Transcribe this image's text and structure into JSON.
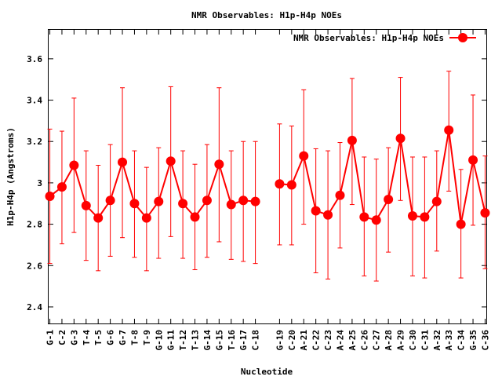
{
  "chart_data": {
    "type": "line",
    "title": "NMR Observables: H1p-H4p NOEs",
    "xlabel": "Nucleotide",
    "ylabel": "H1p-H4p (Angstroms)",
    "ylim": [
      2.32,
      3.74
    ],
    "yticks": [
      2.4,
      2.6,
      2.8,
      3,
      3.2,
      3.4,
      3.6
    ],
    "ytick_labels": [
      "2.4",
      "2.6",
      "2.8",
      "3",
      "3.2",
      "3.4",
      "3.6"
    ],
    "xlim": [
      0.9,
      37.1
    ],
    "legend": {
      "label": "NMR Observables: H1p-H4p NOEs",
      "position": "top-right"
    },
    "series_color": "#ff0000",
    "series": [
      {
        "name": "NMR Observables: H1p-H4p NOEs",
        "points": [
          {
            "x": 1,
            "label": "G-1",
            "y": 2.935,
            "ylow": 2.61,
            "yhigh": 3.26
          },
          {
            "x": 2,
            "label": "C-2",
            "y": 2.98,
            "ylow": 2.705,
            "yhigh": 3.25
          },
          {
            "x": 3,
            "label": "G-3",
            "y": 3.085,
            "ylow": 2.76,
            "yhigh": 3.41
          },
          {
            "x": 4,
            "label": "T-4",
            "y": 2.89,
            "ylow": 2.625,
            "yhigh": 3.155
          },
          {
            "x": 5,
            "label": "T-5",
            "y": 2.83,
            "ylow": 2.575,
            "yhigh": 3.085
          },
          {
            "x": 6,
            "label": "G-6",
            "y": 2.915,
            "ylow": 2.645,
            "yhigh": 3.185
          },
          {
            "x": 7,
            "label": "G-7",
            "y": 3.1,
            "ylow": 2.735,
            "yhigh": 3.46
          },
          {
            "x": 8,
            "label": "T-8",
            "y": 2.9,
            "ylow": 2.64,
            "yhigh": 3.155
          },
          {
            "x": 9,
            "label": "T-9",
            "y": 2.83,
            "ylow": 2.575,
            "yhigh": 3.075
          },
          {
            "x": 10,
            "label": "G-10",
            "y": 2.91,
            "ylow": 2.635,
            "yhigh": 3.17
          },
          {
            "x": 11,
            "label": "G-11",
            "y": 3.105,
            "ylow": 2.74,
            "yhigh": 3.465
          },
          {
            "x": 12,
            "label": "T-12",
            "y": 2.9,
            "ylow": 2.635,
            "yhigh": 3.155
          },
          {
            "x": 13,
            "label": "T-13",
            "y": 2.835,
            "ylow": 2.58,
            "yhigh": 3.09
          },
          {
            "x": 14,
            "label": "G-14",
            "y": 2.915,
            "ylow": 2.64,
            "yhigh": 3.185
          },
          {
            "x": 15,
            "label": "G-15",
            "y": 3.09,
            "ylow": 2.715,
            "yhigh": 3.46
          },
          {
            "x": 16,
            "label": "T-16",
            "y": 2.895,
            "ylow": 2.63,
            "yhigh": 3.155
          },
          {
            "x": 17,
            "label": "G-17",
            "y": 2.915,
            "ylow": 2.62,
            "yhigh": 3.2
          },
          {
            "x": 18,
            "label": "C-18",
            "y": 2.91,
            "ylow": 2.61,
            "yhigh": 3.2
          },
          {
            "x": 20,
            "label": "G-19",
            "y": 2.995,
            "ylow": 2.7,
            "yhigh": 3.285,
            "gap_before": true
          },
          {
            "x": 21,
            "label": "C-20",
            "y": 2.99,
            "ylow": 2.7,
            "yhigh": 3.275
          },
          {
            "x": 22,
            "label": "A-21",
            "y": 3.13,
            "ylow": 2.8,
            "yhigh": 3.45
          },
          {
            "x": 23,
            "label": "C-22",
            "y": 2.865,
            "ylow": 2.565,
            "yhigh": 3.165
          },
          {
            "x": 24,
            "label": "C-23",
            "y": 2.845,
            "ylow": 2.535,
            "yhigh": 3.155
          },
          {
            "x": 25,
            "label": "A-24",
            "y": 2.94,
            "ylow": 2.685,
            "yhigh": 3.195
          },
          {
            "x": 26,
            "label": "A-25",
            "y": 3.205,
            "ylow": 2.895,
            "yhigh": 3.505
          },
          {
            "x": 27,
            "label": "C-26",
            "y": 2.835,
            "ylow": 2.55,
            "yhigh": 3.125
          },
          {
            "x": 28,
            "label": "C-27",
            "y": 2.82,
            "ylow": 2.525,
            "yhigh": 3.115
          },
          {
            "x": 29,
            "label": "A-28",
            "y": 2.92,
            "ylow": 2.665,
            "yhigh": 3.17
          },
          {
            "x": 30,
            "label": "A-29",
            "y": 3.215,
            "ylow": 2.915,
            "yhigh": 3.51
          },
          {
            "x": 31,
            "label": "C-30",
            "y": 2.84,
            "ylow": 2.55,
            "yhigh": 3.125
          },
          {
            "x": 32,
            "label": "C-31",
            "y": 2.835,
            "ylow": 2.54,
            "yhigh": 3.125
          },
          {
            "x": 33,
            "label": "A-32",
            "y": 2.91,
            "ylow": 2.67,
            "yhigh": 3.155
          },
          {
            "x": 34,
            "label": "A-33",
            "y": 3.255,
            "ylow": 2.96,
            "yhigh": 3.54
          },
          {
            "x": 35,
            "label": "C-34",
            "y": 2.8,
            "ylow": 2.54,
            "yhigh": 3.065
          },
          {
            "x": 36,
            "label": "G-35",
            "y": 3.11,
            "ylow": 2.795,
            "yhigh": 3.425
          },
          {
            "x": 37,
            "label": "C-36",
            "y": 2.855,
            "ylow": 2.585,
            "yhigh": 3.13
          }
        ]
      }
    ]
  }
}
